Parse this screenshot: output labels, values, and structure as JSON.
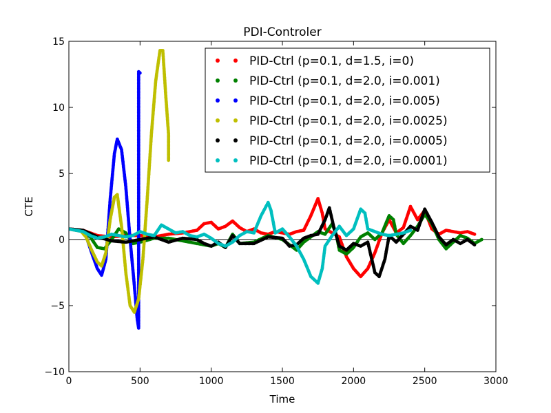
{
  "chart_data": {
    "type": "scatter",
    "title": "PDI-Controler",
    "xlabel": "Time",
    "ylabel": "CTE",
    "xlim": [
      0,
      3000
    ],
    "ylim": [
      -10,
      15
    ],
    "x_ticks": [
      0,
      500,
      1000,
      1500,
      2000,
      2500,
      3000
    ],
    "y_ticks": [
      -10,
      -5,
      0,
      5,
      10,
      15
    ],
    "x_tick_labels": [
      "0",
      "500",
      "1000",
      "1500",
      "2000",
      "2500",
      "3000"
    ],
    "y_tick_labels": [
      "−10",
      "−5",
      "0",
      "5",
      "10",
      "15"
    ],
    "grid": false,
    "zero_line": true,
    "legend_position": "top-right",
    "series": [
      {
        "name": "PID-Ctrl (p=0.1, d=1.5, i=0)",
        "color": "#ff0000",
        "points": [
          [
            0,
            0.8
          ],
          [
            100,
            0.7
          ],
          [
            200,
            0.3
          ],
          [
            300,
            0.2
          ],
          [
            400,
            0.3
          ],
          [
            500,
            0.3
          ],
          [
            600,
            0.2
          ],
          [
            700,
            0.4
          ],
          [
            800,
            0.5
          ],
          [
            900,
            0.7
          ],
          [
            950,
            1.2
          ],
          [
            1000,
            1.3
          ],
          [
            1050,
            0.8
          ],
          [
            1100,
            1.0
          ],
          [
            1150,
            1.4
          ],
          [
            1200,
            0.9
          ],
          [
            1250,
            0.6
          ],
          [
            1300,
            0.8
          ],
          [
            1350,
            0.5
          ],
          [
            1400,
            0.4
          ],
          [
            1450,
            0.6
          ],
          [
            1500,
            0.5
          ],
          [
            1550,
            0.4
          ],
          [
            1600,
            0.6
          ],
          [
            1650,
            0.7
          ],
          [
            1700,
            1.8
          ],
          [
            1750,
            3.1
          ],
          [
            1780,
            2.0
          ],
          [
            1800,
            0.8
          ],
          [
            1850,
            0.5
          ],
          [
            1900,
            0.2
          ],
          [
            1950,
            -1.3
          ],
          [
            2000,
            -2.2
          ],
          [
            2050,
            -2.8
          ],
          [
            2100,
            -2.2
          ],
          [
            2150,
            -1.0
          ],
          [
            2200,
            0.5
          ],
          [
            2250,
            1.5
          ],
          [
            2300,
            0.5
          ],
          [
            2350,
            0.9
          ],
          [
            2400,
            2.5
          ],
          [
            2450,
            1.5
          ],
          [
            2500,
            2.2
          ],
          [
            2550,
            0.8
          ],
          [
            2600,
            0.4
          ],
          [
            2650,
            0.7
          ],
          [
            2700,
            0.6
          ],
          [
            2750,
            0.5
          ],
          [
            2800,
            0.6
          ],
          [
            2850,
            0.4
          ]
        ]
      },
      {
        "name": "PID-Ctrl (p=0.1, d=2.0, i=0.001)",
        "color": "#008000",
        "points": [
          [
            0,
            0.8
          ],
          [
            100,
            0.6
          ],
          [
            150,
            0.2
          ],
          [
            200,
            -0.6
          ],
          [
            250,
            -0.7
          ],
          [
            300,
            0.0
          ],
          [
            350,
            0.8
          ],
          [
            400,
            0.5
          ],
          [
            450,
            -0.3
          ],
          [
            500,
            -0.2
          ],
          [
            600,
            0.1
          ],
          [
            700,
            0.1
          ],
          [
            800,
            -0.1
          ],
          [
            900,
            -0.3
          ],
          [
            1000,
            -0.5
          ],
          [
            1050,
            -0.3
          ],
          [
            1100,
            -0.6
          ],
          [
            1150,
            0.4
          ],
          [
            1200,
            -0.3
          ],
          [
            1300,
            -0.2
          ],
          [
            1400,
            0.3
          ],
          [
            1500,
            0.0
          ],
          [
            1550,
            -0.4
          ],
          [
            1600,
            -0.8
          ],
          [
            1650,
            -0.2
          ],
          [
            1700,
            0.2
          ],
          [
            1750,
            0.6
          ],
          [
            1800,
            0.4
          ],
          [
            1850,
            1.2
          ],
          [
            1880,
            0.3
          ],
          [
            1900,
            -0.8
          ],
          [
            1950,
            -1.1
          ],
          [
            2000,
            -0.6
          ],
          [
            2050,
            0.2
          ],
          [
            2100,
            0.5
          ],
          [
            2150,
            0.0
          ],
          [
            2200,
            0.5
          ],
          [
            2250,
            1.8
          ],
          [
            2280,
            1.5
          ],
          [
            2300,
            0.4
          ],
          [
            2350,
            -0.3
          ],
          [
            2400,
            0.3
          ],
          [
            2450,
            1.0
          ],
          [
            2500,
            1.9
          ],
          [
            2550,
            1.2
          ],
          [
            2600,
            0.0
          ],
          [
            2650,
            -0.7
          ],
          [
            2700,
            -0.2
          ],
          [
            2750,
            0.3
          ],
          [
            2800,
            0.1
          ],
          [
            2850,
            -0.3
          ],
          [
            2900,
            0.0
          ]
        ]
      },
      {
        "name": "PID-Ctrl (p=0.1, d=2.0, i=0.005)",
        "color": "#0000ff",
        "points": [
          [
            0,
            0.8
          ],
          [
            80,
            0.7
          ],
          [
            120,
            0.3
          ],
          [
            160,
            -1.0
          ],
          [
            200,
            -2.2
          ],
          [
            230,
            -2.7
          ],
          [
            260,
            -1.5
          ],
          [
            290,
            3.0
          ],
          [
            320,
            6.5
          ],
          [
            340,
            7.6
          ],
          [
            370,
            6.8
          ],
          [
            400,
            4.0
          ],
          [
            430,
            0.0
          ],
          [
            460,
            -3.5
          ],
          [
            480,
            -6.0
          ],
          [
            490,
            -6.7
          ],
          [
            490,
            12.7
          ],
          [
            500,
            12.6
          ]
        ]
      },
      {
        "name": "PID-Ctrl (p=0.1, d=2.0, i=0.0025)",
        "color": "#bfbf00",
        "points": [
          [
            0,
            0.8
          ],
          [
            80,
            0.7
          ],
          [
            120,
            0.2
          ],
          [
            160,
            -0.8
          ],
          [
            200,
            -1.7
          ],
          [
            230,
            -2.0
          ],
          [
            260,
            -1.0
          ],
          [
            290,
            1.5
          ],
          [
            320,
            3.2
          ],
          [
            340,
            3.4
          ],
          [
            370,
            1.0
          ],
          [
            400,
            -2.5
          ],
          [
            430,
            -5.0
          ],
          [
            460,
            -5.5
          ],
          [
            490,
            -4.5
          ],
          [
            520,
            -1.5
          ],
          [
            550,
            3.0
          ],
          [
            580,
            8.0
          ],
          [
            610,
            12.0
          ],
          [
            640,
            14.3
          ],
          [
            660,
            14.3
          ],
          [
            680,
            11.0
          ],
          [
            700,
            8.0
          ],
          [
            700,
            6.0
          ]
        ]
      },
      {
        "name": "PID-Ctrl (p=0.1, d=2.0, i=0.0005)",
        "color": "#000000",
        "points": [
          [
            0,
            0.8
          ],
          [
            100,
            0.7
          ],
          [
            200,
            0.2
          ],
          [
            300,
            -0.1
          ],
          [
            400,
            -0.2
          ],
          [
            500,
            0.0
          ],
          [
            600,
            0.2
          ],
          [
            700,
            -0.2
          ],
          [
            800,
            0.1
          ],
          [
            900,
            0.0
          ],
          [
            950,
            -0.3
          ],
          [
            1000,
            -0.5
          ],
          [
            1050,
            -0.2
          ],
          [
            1100,
            -0.6
          ],
          [
            1150,
            0.3
          ],
          [
            1200,
            -0.3
          ],
          [
            1300,
            -0.3
          ],
          [
            1400,
            0.2
          ],
          [
            1500,
            0.1
          ],
          [
            1550,
            -0.5
          ],
          [
            1600,
            -0.4
          ],
          [
            1650,
            0.1
          ],
          [
            1700,
            0.3
          ],
          [
            1750,
            0.4
          ],
          [
            1800,
            1.5
          ],
          [
            1830,
            2.4
          ],
          [
            1860,
            1.0
          ],
          [
            1900,
            -0.5
          ],
          [
            1950,
            -0.8
          ],
          [
            2000,
            -0.3
          ],
          [
            2050,
            -0.5
          ],
          [
            2100,
            -0.2
          ],
          [
            2150,
            -2.5
          ],
          [
            2180,
            -2.8
          ],
          [
            2220,
            -1.5
          ],
          [
            2250,
            0.3
          ],
          [
            2300,
            -0.2
          ],
          [
            2350,
            0.4
          ],
          [
            2400,
            1.0
          ],
          [
            2450,
            0.7
          ],
          [
            2500,
            2.3
          ],
          [
            2550,
            1.3
          ],
          [
            2600,
            0.2
          ],
          [
            2650,
            -0.4
          ],
          [
            2700,
            0.0
          ],
          [
            2750,
            -0.3
          ],
          [
            2800,
            0.0
          ],
          [
            2850,
            -0.4
          ]
        ]
      },
      {
        "name": "PID-Ctrl (p=0.1, d=2.0, i=0.0001)",
        "color": "#00bfbf",
        "points": [
          [
            0,
            0.8
          ],
          [
            100,
            0.6
          ],
          [
            150,
            0.3
          ],
          [
            200,
            0.1
          ],
          [
            250,
            0.2
          ],
          [
            300,
            0.4
          ],
          [
            350,
            0.3
          ],
          [
            400,
            0.2
          ],
          [
            450,
            0.3
          ],
          [
            500,
            0.6
          ],
          [
            550,
            0.4
          ],
          [
            600,
            0.3
          ],
          [
            650,
            1.1
          ],
          [
            700,
            0.8
          ],
          [
            750,
            0.5
          ],
          [
            800,
            0.6
          ],
          [
            850,
            0.3
          ],
          [
            900,
            0.2
          ],
          [
            950,
            0.4
          ],
          [
            1000,
            0.1
          ],
          [
            1050,
            -0.3
          ],
          [
            1100,
            -0.5
          ],
          [
            1150,
            -0.2
          ],
          [
            1200,
            0.3
          ],
          [
            1250,
            0.6
          ],
          [
            1300,
            0.5
          ],
          [
            1350,
            1.8
          ],
          [
            1400,
            2.8
          ],
          [
            1420,
            2.2
          ],
          [
            1450,
            0.5
          ],
          [
            1500,
            0.8
          ],
          [
            1550,
            0.2
          ],
          [
            1600,
            -0.5
          ],
          [
            1650,
            -1.5
          ],
          [
            1700,
            -2.8
          ],
          [
            1750,
            -3.3
          ],
          [
            1780,
            -2.2
          ],
          [
            1800,
            -0.5
          ],
          [
            1850,
            0.3
          ],
          [
            1900,
            1.0
          ],
          [
            1950,
            0.3
          ],
          [
            2000,
            0.8
          ],
          [
            2050,
            2.3
          ],
          [
            2080,
            2.0
          ],
          [
            2100,
            0.8
          ],
          [
            2150,
            0.6
          ],
          [
            2200,
            0.4
          ],
          [
            2250,
            0.3
          ],
          [
            2300,
            0.4
          ],
          [
            2350,
            0.5
          ],
          [
            2400,
            0.7
          ]
        ]
      }
    ]
  }
}
